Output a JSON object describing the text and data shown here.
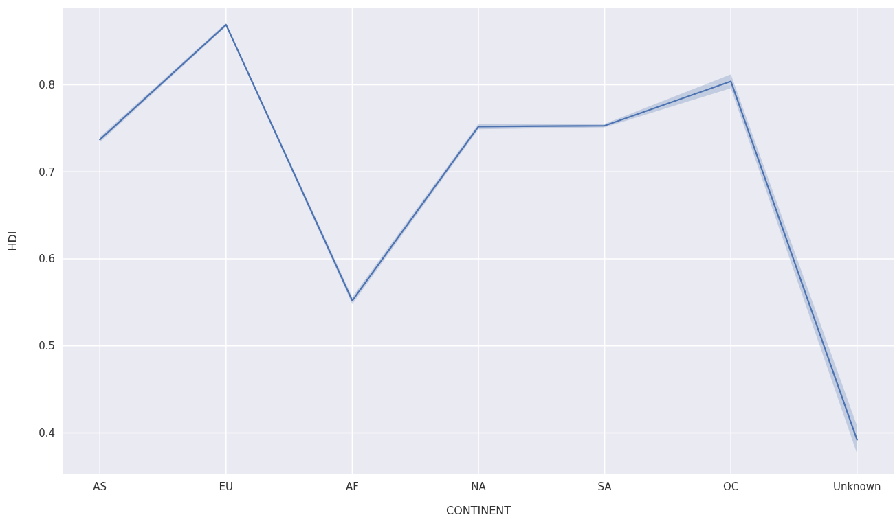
{
  "chart_data": {
    "type": "line",
    "xlabel": "CONTINENT",
    "ylabel": "HDI",
    "categories": [
      "AS",
      "EU",
      "AF",
      "NA",
      "SA",
      "OC",
      "Unknown"
    ],
    "series": [
      {
        "color": "#4c72b0",
        "values": [
          0.737,
          0.869,
          0.552,
          0.752,
          0.753,
          0.804,
          0.392
        ],
        "lower": [
          0.734,
          0.867,
          0.548,
          0.749,
          0.751,
          0.796,
          0.376
        ],
        "upper": [
          0.74,
          0.871,
          0.556,
          0.755,
          0.755,
          0.812,
          0.408
        ]
      }
    ],
    "ylim": [
      0.353,
      0.888
    ],
    "yticks": [
      0.4,
      0.5,
      0.6,
      0.7,
      0.8
    ],
    "grid": true,
    "line_style": "solid",
    "marker": "none"
  }
}
